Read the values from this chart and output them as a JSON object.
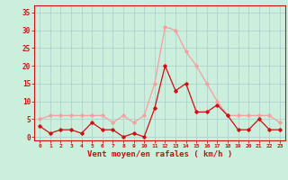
{
  "hours": [
    0,
    1,
    2,
    3,
    4,
    5,
    6,
    7,
    8,
    9,
    10,
    11,
    12,
    13,
    14,
    15,
    16,
    17,
    18,
    19,
    20,
    21,
    22,
    23
  ],
  "wind_mean": [
    3,
    1,
    2,
    2,
    1,
    4,
    2,
    2,
    0,
    1,
    0,
    8,
    20,
    13,
    15,
    7,
    7,
    9,
    6,
    2,
    2,
    5,
    2,
    2
  ],
  "wind_gust": [
    5,
    6,
    6,
    6,
    6,
    6,
    6,
    4,
    6,
    4,
    6,
    15,
    31,
    30,
    24,
    20,
    15,
    10,
    6,
    6,
    6,
    6,
    6,
    4
  ],
  "mean_color": "#cc1111",
  "gust_color": "#f4a0a0",
  "bg_color": "#cceedd",
  "grid_color": "#aacccc",
  "xlabel": "Vent moyen/en rafales ( km/h )",
  "ylabel_ticks": [
    0,
    5,
    10,
    15,
    20,
    25,
    30,
    35
  ],
  "ylim": [
    -1,
    37
  ],
  "xlim": [
    -0.5,
    23.5
  ],
  "xlabel_color": "#cc1111",
  "tick_color": "#cc1111",
  "spine_color": "#cc1111"
}
